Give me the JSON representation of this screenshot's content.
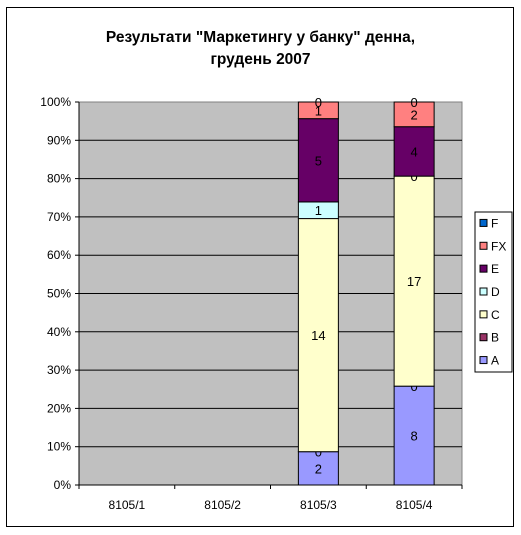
{
  "chart_data": {
    "type": "bar",
    "stacked": "percent",
    "title_line1": "Результати \"Маркетингу у банку\" денна,",
    "title_line2": "грудень 2007",
    "categories": [
      "8105/1",
      "8105/2",
      "8105/3",
      "8105/4"
    ],
    "series": [
      {
        "name": "A",
        "color": "#9999ff",
        "values": [
          0,
          0,
          2,
          8
        ]
      },
      {
        "name": "B",
        "color": "#993366",
        "values": [
          0,
          0,
          0,
          0
        ]
      },
      {
        "name": "C",
        "color": "#ffffcc",
        "values": [
          0,
          0,
          14,
          17
        ]
      },
      {
        "name": "D",
        "color": "#ccffff",
        "values": [
          0,
          0,
          1,
          0
        ]
      },
      {
        "name": "E",
        "color": "#660066",
        "values": [
          0,
          0,
          5,
          4
        ]
      },
      {
        "name": "FX",
        "color": "#ff8080",
        "values": [
          0,
          0,
          1,
          2
        ]
      },
      {
        "name": "F",
        "color": "#0066cc",
        "values": [
          0,
          0,
          0,
          0
        ]
      }
    ],
    "legend_order": [
      "F",
      "FX",
      "E",
      "D",
      "C",
      "B",
      "A"
    ],
    "y_ticks": [
      "0%",
      "10%",
      "20%",
      "30%",
      "40%",
      "50%",
      "60%",
      "70%",
      "80%",
      "90%",
      "100%"
    ],
    "ylim": [
      0,
      100
    ],
    "grid": true,
    "legend_position": "right",
    "plot_background": "#c0c0c0"
  }
}
